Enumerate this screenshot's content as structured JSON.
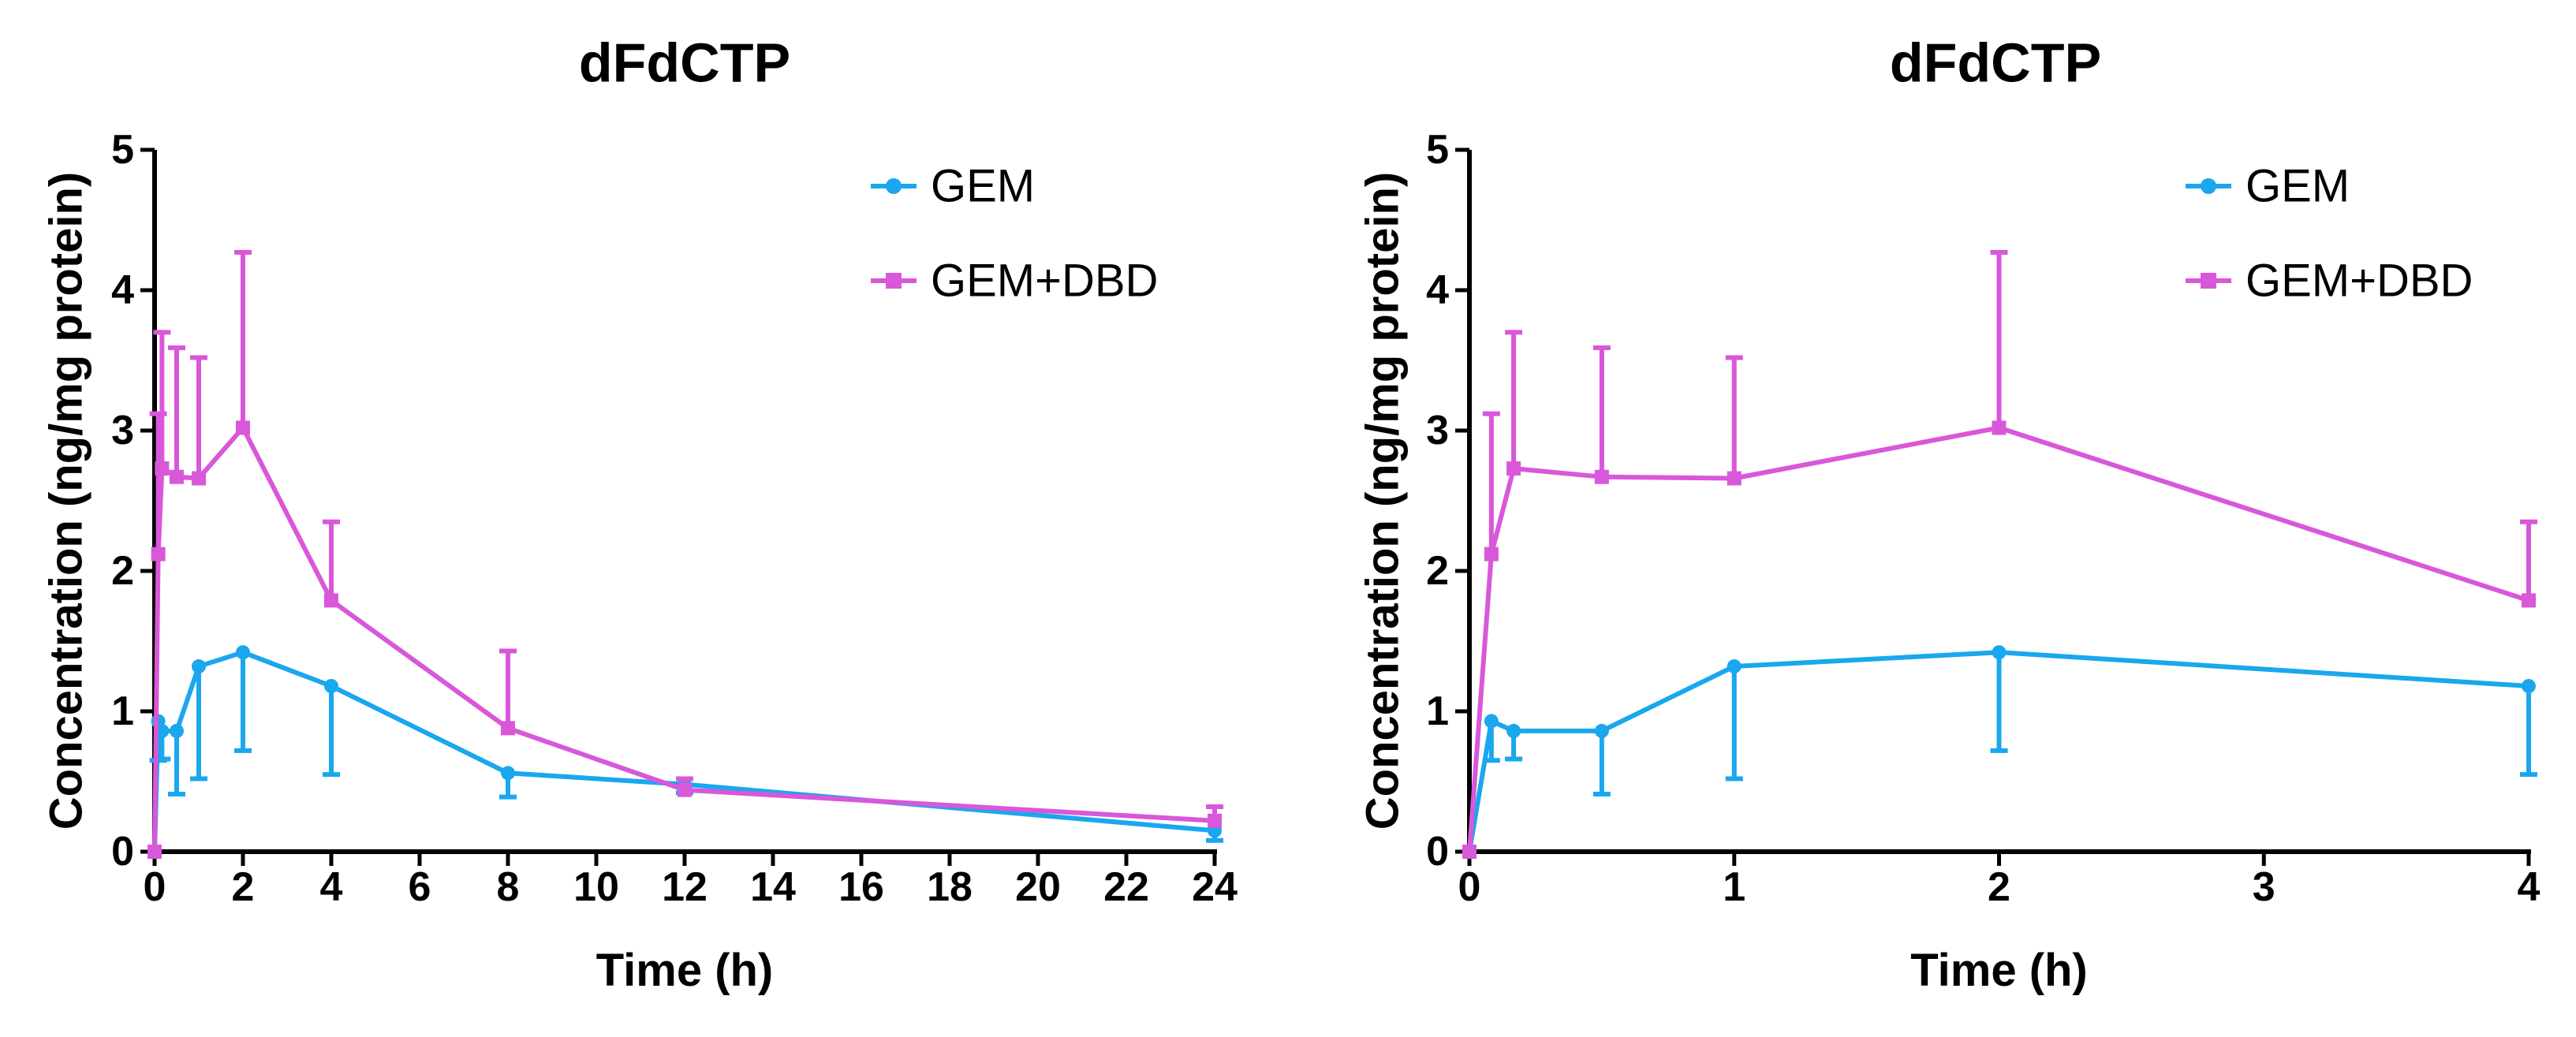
{
  "chart_data": [
    {
      "type": "line",
      "title": "dFdCTP",
      "xlabel": "Time (h)",
      "ylabel": "Concentration (ng/mg protein)",
      "xlim": [
        0,
        24
      ],
      "ylim": [
        0,
        5
      ],
      "xticks": [
        0,
        2,
        4,
        6,
        8,
        10,
        12,
        14,
        16,
        18,
        20,
        22,
        24
      ],
      "yticks": [
        0,
        1,
        2,
        3,
        4,
        5
      ],
      "legend_position": "top-right",
      "series": [
        {
          "name": "GEM",
          "color": "#1AA7EE",
          "marker": "circle",
          "error_direction": "down",
          "x": [
            0,
            0.083,
            0.167,
            0.5,
            1,
            2,
            4,
            8,
            12,
            24
          ],
          "y": [
            0,
            0.93,
            0.86,
            0.86,
            1.32,
            1.42,
            1.18,
            0.56,
            0.48,
            0.15
          ],
          "err": [
            0,
            0.28,
            0.2,
            0.45,
            0.8,
            0.7,
            0.63,
            0.17,
            0.06,
            0.07
          ]
        },
        {
          "name": "GEM+DBD",
          "color": "#D957D9",
          "marker": "square",
          "error_direction": "up",
          "x": [
            0,
            0.083,
            0.167,
            0.5,
            1,
            2,
            4,
            8,
            12,
            24
          ],
          "y": [
            0,
            2.12,
            2.73,
            2.67,
            2.66,
            3.02,
            1.79,
            0.88,
            0.44,
            0.22
          ],
          "err": [
            0,
            1.0,
            0.97,
            0.92,
            0.86,
            1.25,
            0.56,
            0.55,
            0.08,
            0.1
          ]
        }
      ]
    },
    {
      "type": "line",
      "title": "dFdCTP",
      "xlabel": "Time (h)",
      "ylabel": "Concentration (ng/mg protein)",
      "xlim": [
        0,
        4
      ],
      "ylim": [
        0,
        5
      ],
      "xticks": [
        0,
        1,
        2,
        3,
        4
      ],
      "xtick_positions": [
        0,
        1,
        2,
        3,
        4
      ],
      "yticks": [
        0,
        1,
        2,
        3,
        4,
        5
      ],
      "legend_position": "top-right",
      "series": [
        {
          "name": "GEM",
          "color": "#1AA7EE",
          "marker": "circle",
          "error_direction": "down",
          "x": [
            0,
            0.083,
            0.167,
            0.5,
            1,
            2,
            4
          ],
          "y": [
            0,
            0.93,
            0.86,
            0.86,
            1.32,
            1.42,
            1.18
          ],
          "err": [
            0,
            0.28,
            0.2,
            0.45,
            0.8,
            0.7,
            0.63
          ]
        },
        {
          "name": "GEM+DBD",
          "color": "#D957D9",
          "marker": "square",
          "error_direction": "up",
          "x": [
            0,
            0.083,
            0.167,
            0.5,
            1,
            2,
            4
          ],
          "y": [
            0,
            2.12,
            2.73,
            2.67,
            2.66,
            3.02,
            1.79
          ],
          "err": [
            0,
            1.0,
            0.97,
            0.92,
            0.86,
            1.25,
            0.56
          ]
        }
      ]
    }
  ]
}
